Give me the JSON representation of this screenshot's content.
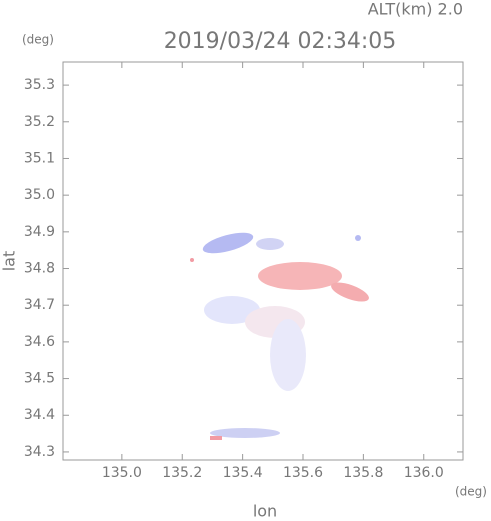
{
  "chart_data": {
    "type": "map",
    "title": "2019/03/24 02:34:05",
    "annotation": "ALT(km) 2.0",
    "x_label": "lon",
    "y_label": "lat",
    "x_unit": "(deg)",
    "y_unit": "(deg)",
    "xlim": [
      134.805,
      136.13
    ],
    "ylim": [
      34.278,
      35.363
    ],
    "xticks": [
      {
        "value": 135,
        "label": "135.0"
      },
      135.2,
      135.4,
      135.6,
      135.8,
      {
        "value": 136,
        "label": "136.0"
      }
    ],
    "yticks": [
      34.3,
      34.4,
      34.5,
      34.6,
      34.7,
      34.8,
      34.9,
      {
        "value": 35,
        "label": "35.0"
      },
      35.1,
      35.2,
      35.3
    ]
  }
}
